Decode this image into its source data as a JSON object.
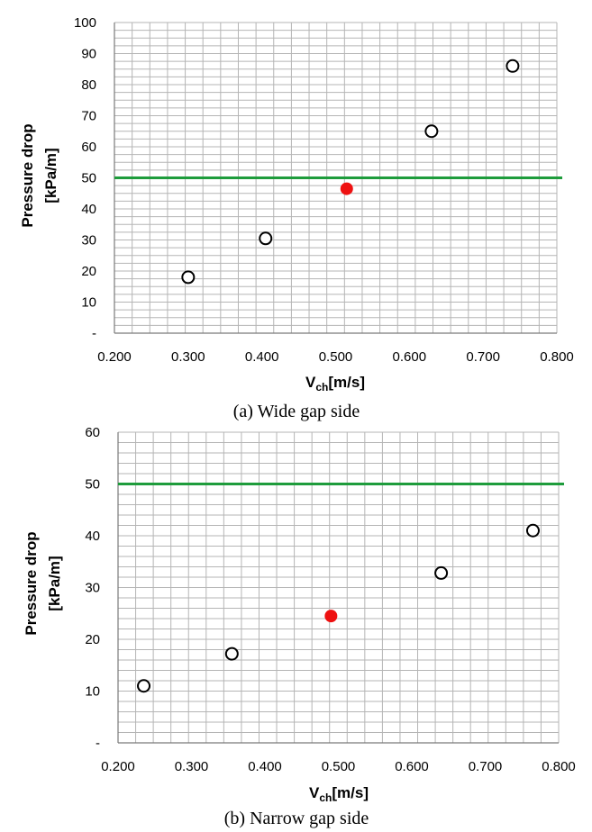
{
  "chart_data": [
    {
      "type": "scatter",
      "caption": "(a)  Wide  gap  side",
      "ylabel_line1": "Pressure drop",
      "ylabel_line2": "[kPa/m]",
      "xlabel_main": "V",
      "xlabel_sub": "ch",
      "xlabel_unit": "[m/s]",
      "xlim": [
        0.2,
        0.8
      ],
      "ylim": [
        0,
        100
      ],
      "xticks": [
        "0.200",
        "0.300",
        "0.400",
        "0.500",
        "0.600",
        "0.700",
        "0.800"
      ],
      "yticks": [
        "-",
        "10",
        "20",
        "30",
        "40",
        "50",
        "60",
        "70",
        "80",
        "90",
        "100"
      ],
      "grid": true,
      "limit_line": {
        "y": 50,
        "color": "#1e9c3c"
      },
      "series": [
        {
          "marker": "open-circle",
          "color": "#000000",
          "points": [
            [
              0.3,
              18
            ],
            [
              0.405,
              30.5
            ],
            [
              0.63,
              65
            ],
            [
              0.74,
              86
            ]
          ]
        },
        {
          "marker": "filled-circle",
          "color": "#ee1111",
          "points": [
            [
              0.515,
              46.5
            ]
          ]
        }
      ]
    },
    {
      "type": "scatter",
      "caption": "(b)  Narrow  gap  side",
      "ylabel_line1": "Pressure drop",
      "ylabel_line2": "[kPa/m]",
      "xlabel_main": "V",
      "xlabel_sub": "ch",
      "xlabel_unit": "[m/s]",
      "xlim": [
        0.2,
        0.8
      ],
      "ylim": [
        0,
        60
      ],
      "xticks": [
        "0.200",
        "0.300",
        "0.400",
        "0.500",
        "0.600",
        "0.700",
        "0.800"
      ],
      "yticks": [
        "-",
        "10",
        "20",
        "30",
        "40",
        "50",
        "60"
      ],
      "grid": true,
      "limit_line": {
        "y": 50,
        "color": "#1e9c3c"
      },
      "series": [
        {
          "marker": "open-circle",
          "color": "#000000",
          "points": [
            [
              0.235,
              11
            ],
            [
              0.355,
              17.2
            ],
            [
              0.64,
              32.8
            ],
            [
              0.765,
              41
            ]
          ]
        },
        {
          "marker": "filled-circle",
          "color": "#ee1111",
          "points": [
            [
              0.49,
              24.5
            ]
          ]
        }
      ]
    }
  ]
}
